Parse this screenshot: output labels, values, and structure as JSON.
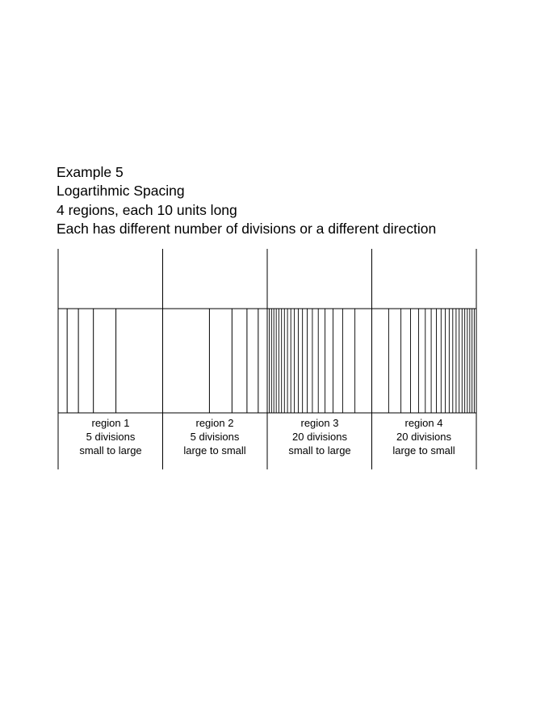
{
  "heading": {
    "line1": "Example 5",
    "line2": "Logartihmic Spacing",
    "line3": "4 regions, each 10 units long",
    "line4": "Each has different number of divisions or a different direction"
  },
  "regions": [
    {
      "name": "region 1",
      "divisions_text": "5 divisions",
      "direction_text": "small to large",
      "divisions": 5,
      "direction": "small-to-large"
    },
    {
      "name": "region 2",
      "divisions_text": "5 divisions",
      "direction_text": "large to small",
      "divisions": 5,
      "direction": "large-to-small"
    },
    {
      "name": "region 3",
      "divisions_text": "20 divisions",
      "direction_text": "small to large",
      "divisions": 20,
      "direction": "small-to-large"
    },
    {
      "name": "region 4",
      "divisions_text": "20 divisions",
      "direction_text": "large to small",
      "divisions": 20,
      "direction": "large-to-small"
    }
  ],
  "units_per_region": 10,
  "colors": {
    "line": "#000000",
    "background": "#ffffff"
  }
}
